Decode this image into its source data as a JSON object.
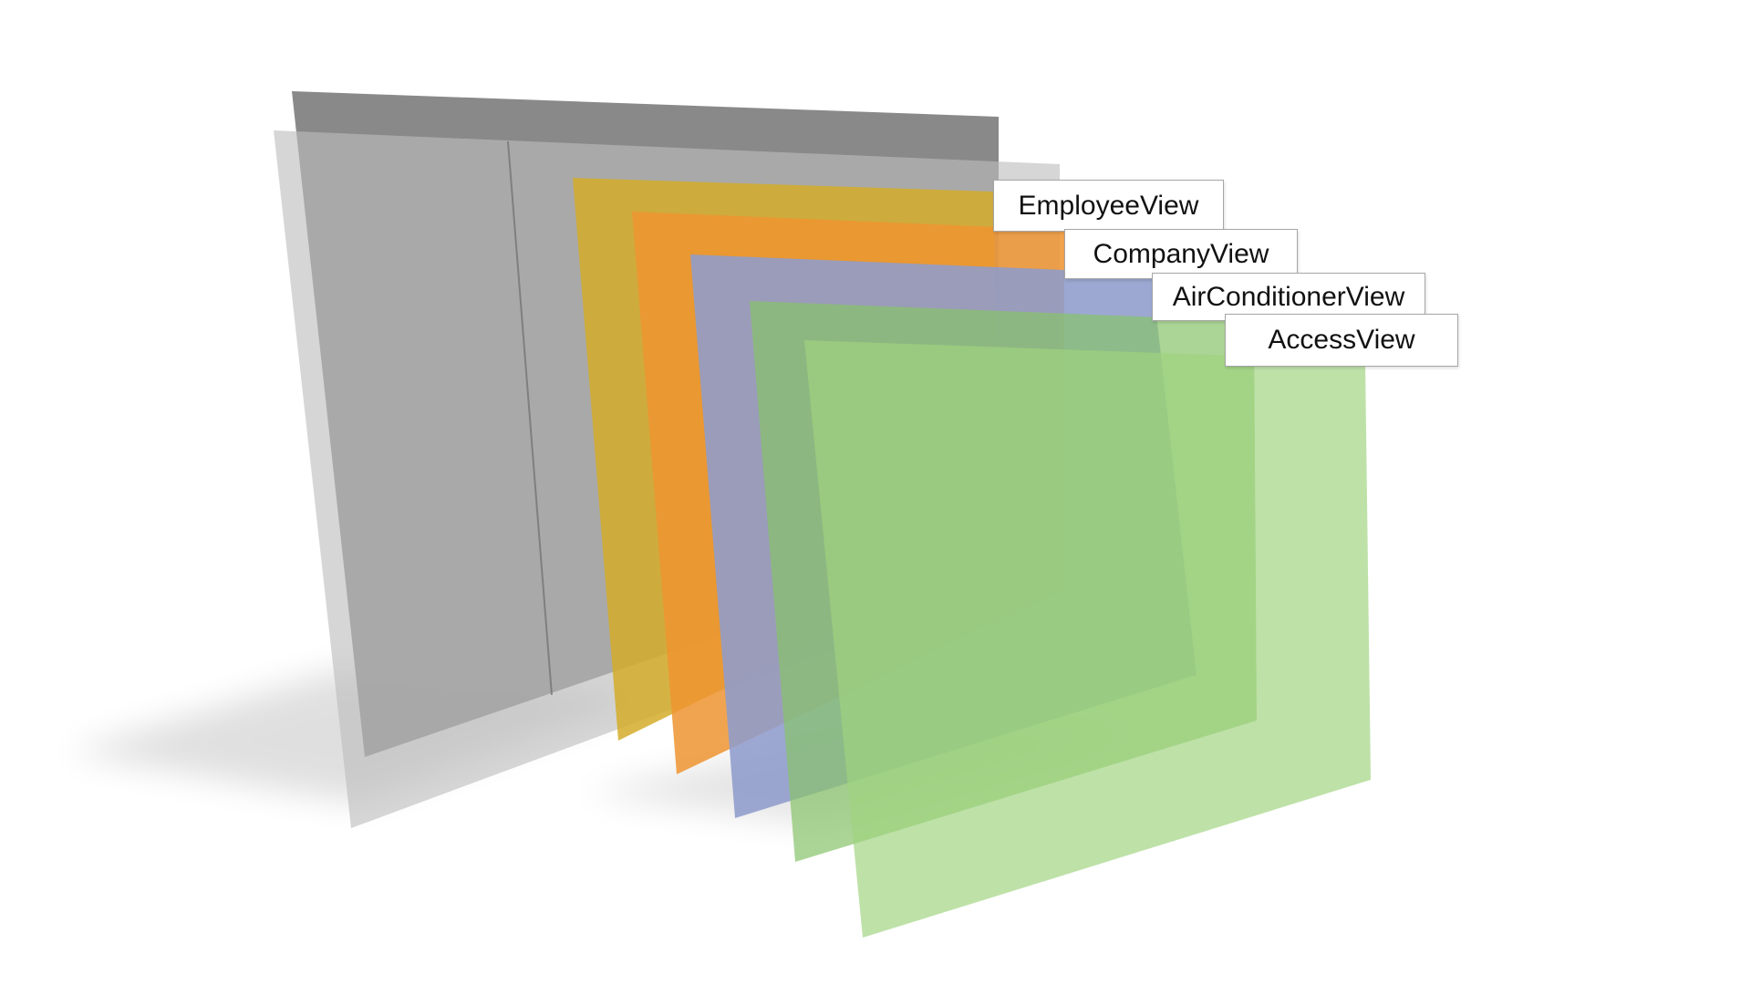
{
  "colors": {
    "back_layer": "#8a8a8a",
    "back_layer_front": "#b5b5b5",
    "employee_view": "#d4b23a",
    "company_view": "#eb962e",
    "aircon_view": "#8fa3d6",
    "access_view": "#9bd17e",
    "shadow": "#d9d9d9"
  },
  "labels": {
    "employee_view": "EmployeeView",
    "company_view": "CompanyView",
    "air_conditioner_view": "AirConditionerView",
    "access_view": "AccessView"
  }
}
